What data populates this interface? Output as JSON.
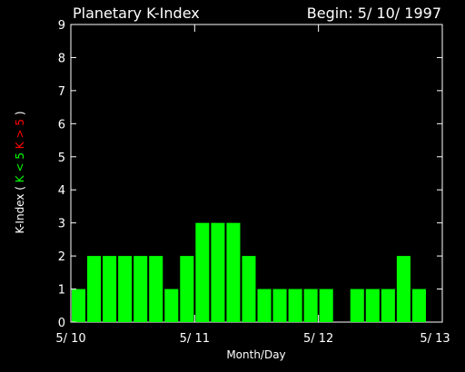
{
  "chart_data": {
    "type": "bar",
    "title": "Planetary K-Index",
    "subtitle": "Begin: 5/ 10/ 1997",
    "xlabel": "Month/Day",
    "ylabel": "K-Index",
    "ylabel_green": "K < 5",
    "ylabel_red": "K > 5",
    "ylabel_paren_open": "(",
    "ylabel_paren_close": ")",
    "ylim": [
      0,
      9
    ],
    "y_ticks": [
      "0",
      "1",
      "2",
      "3",
      "4",
      "5",
      "6",
      "7",
      "8",
      "9"
    ],
    "x_ticks": [
      "5/ 10",
      "5/ 11",
      "5/ 12",
      "5/ 13"
    ],
    "bars_per_day": 8,
    "values": [
      1,
      2,
      2,
      2,
      2,
      2,
      1,
      2,
      3,
      3,
      3,
      2,
      1,
      1,
      1,
      1,
      1,
      0,
      1,
      1,
      1,
      2,
      1,
      0
    ],
    "colors": {
      "low": "#00ff00",
      "high": "#ff0000",
      "axes": "#ffffff",
      "background": "#000000"
    },
    "grid": false
  }
}
